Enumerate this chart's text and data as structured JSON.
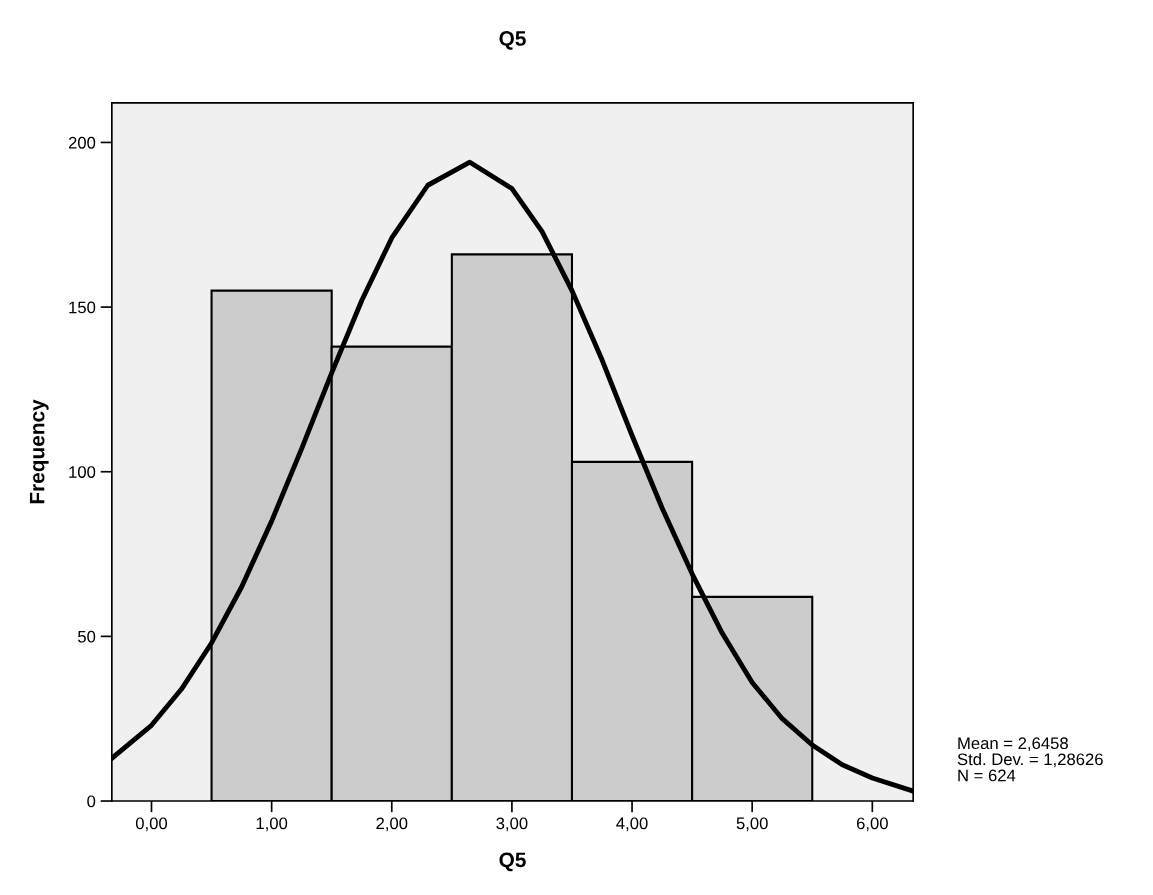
{
  "chart_data": {
    "type": "histogram",
    "title": "Q5",
    "xlabel": "Q5",
    "ylabel": "Frequency",
    "bins": [
      0.5,
      1.5,
      2.5,
      3.5,
      4.5,
      5.5
    ],
    "values": [
      155,
      138,
      166,
      103,
      62
    ],
    "color": "#cccccc",
    "series": [
      {
        "type": "line",
        "color": "#000000",
        "line_style": "solid",
        "x": [
          -0.33,
          0,
          0.25,
          0.5,
          0.75,
          1,
          1.25,
          1.5,
          1.75,
          2,
          2.3,
          2.65,
          3,
          3.25,
          3.5,
          3.75,
          4,
          4.25,
          4.5,
          4.75,
          5,
          5.25,
          5.5,
          5.75,
          6,
          6.34
        ],
        "values": [
          13,
          23,
          34,
          48,
          65,
          85,
          107,
          130,
          152,
          171,
          187,
          194,
          186,
          173,
          155,
          134,
          111,
          89,
          69,
          51,
          36,
          25,
          17,
          11,
          7,
          3
        ]
      }
    ],
    "xlim": [
      -0.33,
      6.34
    ],
    "ylim": [
      0,
      212
    ],
    "xticks": [
      {
        "value": 0,
        "label": "0,00"
      },
      {
        "value": 1,
        "label": "1,00"
      },
      {
        "value": 2,
        "label": "2,00"
      },
      {
        "value": 3,
        "label": "3,00"
      },
      {
        "value": 4,
        "label": "4,00"
      },
      {
        "value": 5,
        "label": "5,00"
      },
      {
        "value": 6,
        "label": "6,00"
      }
    ],
    "yticks": [
      0,
      50,
      100,
      150,
      200
    ],
    "grid": false,
    "legend": false,
    "annotations": [
      "Mean = 2,6458",
      "Std. Dev. = 1,28626",
      "N = 624"
    ]
  }
}
